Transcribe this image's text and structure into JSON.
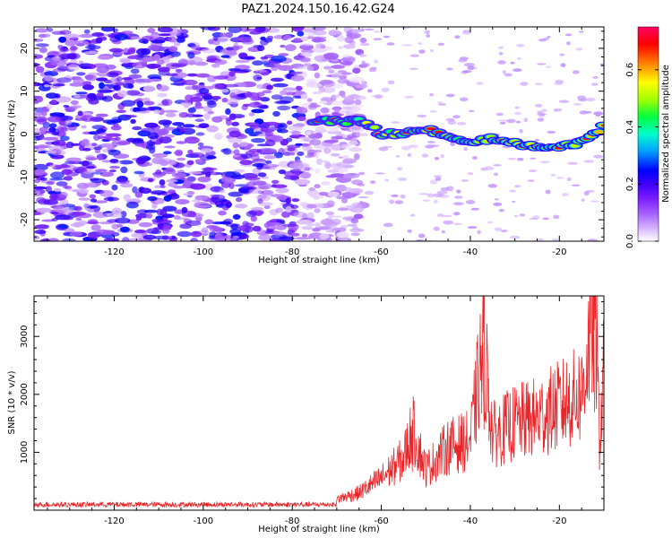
{
  "title": "PAZ1.2024.150.16.42.G24",
  "chart_data": [
    {
      "type": "heatmap",
      "xlabel": "Height of straight line (km)",
      "ylabel": "Frequency (Hz)",
      "xlim": [
        -138,
        -10
      ],
      "ylim": [
        -25,
        25
      ],
      "xticks": [
        -120,
        -100,
        -80,
        -60,
        -40,
        -20
      ],
      "yticks": [
        -20,
        -10,
        0,
        10,
        20
      ],
      "colorbar": {
        "label": "Normalized spectral amplitude",
        "range": [
          0,
          0.75
        ],
        "ticks": [
          0.0,
          0.2,
          0.4,
          0.6
        ],
        "colormap": [
          "#ffffff",
          "#d6b4ff",
          "#a560ff",
          "#7a1cff",
          "#3b00ff",
          "#0000ff",
          "#00a0ff",
          "#00ffcc",
          "#00ff40",
          "#a0ff00",
          "#ffff00",
          "#ff8000",
          "#ff0000",
          "#ff0066"
        ]
      },
      "ridge": {
        "points": [
          [
            -75,
            3
          ],
          [
            -70,
            3
          ],
          [
            -65,
            3
          ],
          [
            -62,
            2
          ],
          [
            -60,
            0
          ],
          [
            -55,
            0
          ],
          [
            -50,
            1
          ],
          [
            -45,
            0
          ],
          [
            -40,
            -2
          ],
          [
            -35,
            -1
          ],
          [
            -30,
            -2
          ],
          [
            -25,
            -3
          ],
          [
            -20,
            -3
          ],
          [
            -15,
            -2
          ],
          [
            -12,
            0
          ],
          [
            -10,
            2
          ]
        ],
        "peak_amplitude": 0.75
      },
      "noise_region": {
        "x_range": [
          -138,
          -70
        ],
        "amplitude_range": [
          0.05,
          0.3
        ]
      }
    },
    {
      "type": "line",
      "xlabel": "Height of straight line (km)",
      "ylabel": "SNR (10 * v/v)",
      "xlim": [
        -138,
        -10
      ],
      "ylim": [
        0,
        3700
      ],
      "xticks": [
        -120,
        -100,
        -80,
        -60,
        -40,
        -20
      ],
      "yticks": [
        1000,
        2000,
        3000
      ],
      "color": "#e8262a",
      "series_summary": [
        {
          "x": -138,
          "y": 80
        },
        {
          "x": -132,
          "y": 160
        },
        {
          "x": -130,
          "y": 90
        },
        {
          "x": -100,
          "y": 80
        },
        {
          "x": -75,
          "y": 80
        },
        {
          "x": -65,
          "y": 300
        },
        {
          "x": -60,
          "y": 550
        },
        {
          "x": -55,
          "y": 900
        },
        {
          "x": -53,
          "y": 1400
        },
        {
          "x": -50,
          "y": 700
        },
        {
          "x": -45,
          "y": 1100
        },
        {
          "x": -40,
          "y": 1200
        },
        {
          "x": -37,
          "y": 2900
        },
        {
          "x": -35,
          "y": 1300
        },
        {
          "x": -30,
          "y": 1500
        },
        {
          "x": -25,
          "y": 1600
        },
        {
          "x": -20,
          "y": 1800
        },
        {
          "x": -15,
          "y": 2000
        },
        {
          "x": -12,
          "y": 3600
        },
        {
          "x": -11,
          "y": 1200
        },
        {
          "x": -10,
          "y": 2400
        }
      ]
    }
  ]
}
